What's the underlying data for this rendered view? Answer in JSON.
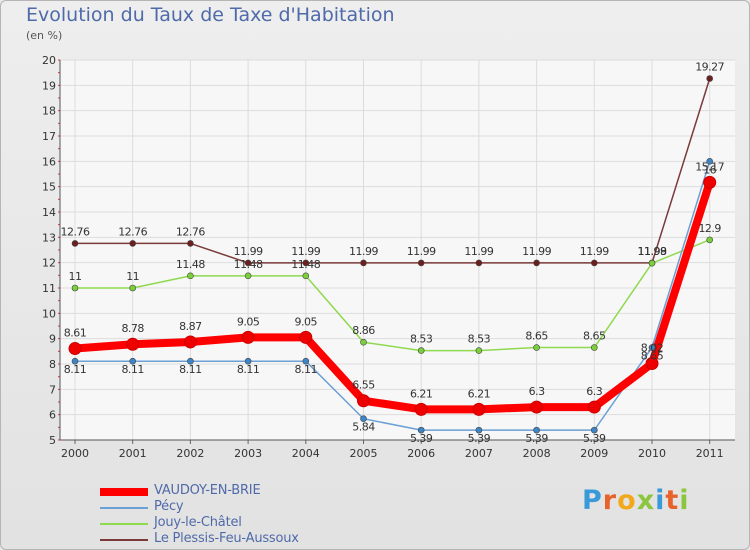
{
  "title": "Evolution du Taux de Taxe d'Habitation",
  "subtitle": "(en %)",
  "logo_text": "Proxiti",
  "logo_colors": [
    "#3a9ad9",
    "#e8632b",
    "#f2a81d",
    "#8cc63f",
    "#3a9ad9",
    "#e8632b",
    "#8cc63f"
  ],
  "chart_data": {
    "type": "line",
    "title": "Evolution du Taux de Taxe d'Habitation",
    "ylabel": "(en %)",
    "xlabel": "",
    "x": [
      "2000",
      "2001",
      "2002",
      "2003",
      "2004",
      "2005",
      "2006",
      "2007",
      "2008",
      "2009",
      "2010",
      "2011"
    ],
    "ylim": [
      5,
      20
    ],
    "yticks": [
      "5",
      "6",
      "7",
      "8",
      "9",
      "10",
      "11",
      "12",
      "13",
      "14",
      "15",
      "16",
      "17",
      "18",
      "19",
      "20"
    ],
    "grid": true,
    "legend_position": "bottom-left",
    "series": [
      {
        "name": "VAUDOY-EN-BRIE",
        "color": "#ff0000",
        "values": [
          8.61,
          8.78,
          8.87,
          9.05,
          9.05,
          6.55,
          6.21,
          6.21,
          6.3,
          6.3,
          8.02,
          15.17
        ],
        "labels": [
          "8.61",
          "8.78",
          "8.87",
          "9.05",
          "9.05",
          "6.55",
          "6.21",
          "6.21",
          "6.3",
          "6.3",
          "8.02",
          "15.17"
        ]
      },
      {
        "name": "Pécy",
        "color": "#6c9fd3",
        "values": [
          8.11,
          8.11,
          8.11,
          8.11,
          8.11,
          5.84,
          5.39,
          5.39,
          5.39,
          5.39,
          8.65,
          16
        ],
        "labels": [
          "8.11",
          "8.11",
          "8.11",
          "8.11",
          "8.11",
          "5.84",
          "5.39",
          "5.39",
          "5.39",
          "5.39",
          "8.65",
          "16"
        ]
      },
      {
        "name": "Jouy-le-Châtel",
        "color": "#8fd94f",
        "values": [
          11,
          11,
          11.48,
          11.48,
          11.48,
          8.86,
          8.53,
          8.53,
          8.65,
          8.65,
          11.98,
          12.9
        ],
        "labels": [
          "11",
          "11",
          "11.48",
          "11.48",
          "11.48",
          "8.86",
          "8.53",
          "8.53",
          "8.65",
          "8.65",
          "11.98",
          "12.9"
        ]
      },
      {
        "name": "Le Plessis-Feu-Aussoux",
        "color": "#7a3a3a",
        "values": [
          12.76,
          12.76,
          12.76,
          11.99,
          11.99,
          11.99,
          11.99,
          11.99,
          11.99,
          11.99,
          11.99,
          19.27
        ],
        "labels": [
          "12.76",
          "12.76",
          "12.76",
          "11.99",
          "11.99",
          "11.99",
          "11.99",
          "11.99",
          "11.99",
          "11.99",
          "11.99",
          "19.27"
        ]
      }
    ]
  }
}
